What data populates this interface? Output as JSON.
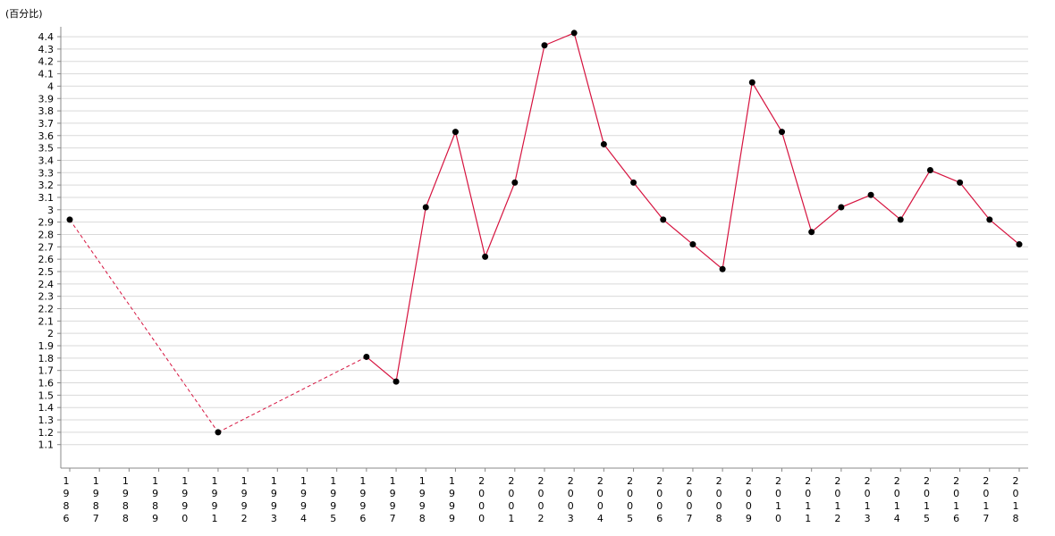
{
  "chart_data": {
    "type": "line",
    "y_label": "(百分比)",
    "categories": [
      "1986",
      "1987",
      "1988",
      "1989",
      "1990",
      "1991",
      "1992",
      "1993",
      "1994",
      "1995",
      "1996",
      "1997",
      "1998",
      "1999",
      "2000",
      "2001",
      "2002",
      "2003",
      "2004",
      "2005",
      "2006",
      "2007",
      "2008",
      "2009",
      "2010",
      "2011",
      "2012",
      "2013",
      "2014",
      "2015",
      "2016",
      "2017",
      "2018"
    ],
    "series": [
      {
        "color": "#d6133f",
        "values": [
          2.92,
          null,
          null,
          null,
          null,
          1.2,
          null,
          null,
          null,
          null,
          1.81,
          1.61,
          3.02,
          3.63,
          2.62,
          3.22,
          4.33,
          4.43,
          3.53,
          3.22,
          2.92,
          2.72,
          2.52,
          4.03,
          3.63,
          2.82,
          3.02,
          3.12,
          2.92,
          3.32,
          3.22,
          2.92,
          2.72
        ]
      }
    ],
    "ylim": [
      0.91,
      4.48
    ],
    "yticks": [
      1.1,
      1.2,
      1.3,
      1.4,
      1.5,
      1.6,
      1.7,
      1.8,
      1.9,
      2,
      2.1,
      2.2,
      2.3,
      2.4,
      2.5,
      2.6,
      2.7,
      2.8,
      2.9,
      3,
      3.1,
      3.2,
      3.3,
      3.4,
      3.5,
      3.6,
      3.7,
      3.8,
      3.9,
      4,
      4.1,
      4.2,
      4.3,
      4.4
    ],
    "grid": true
  }
}
